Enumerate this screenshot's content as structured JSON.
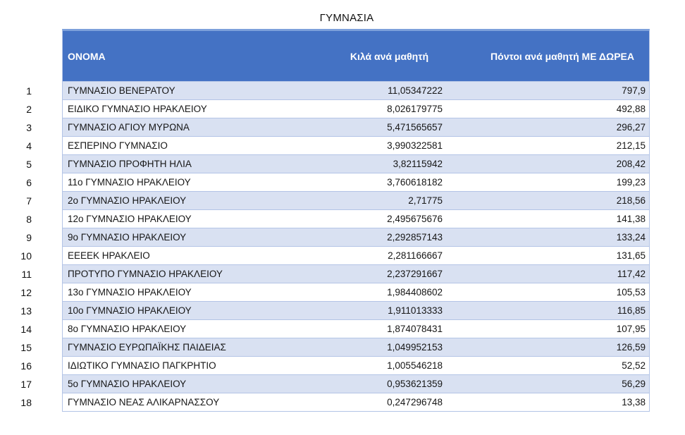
{
  "title": "ΓΥΜΝΑΣΙΑ",
  "colors": {
    "header_bg": "#4472C4",
    "header_top_edge": "#7DA0DB",
    "band_row_bg": "#D9E1F2",
    "plain_row_bg": "#FFFFFF",
    "border": "#B3C4E6",
    "header_text": "#FFFFFF",
    "body_text": "#161616"
  },
  "table": {
    "columns": [
      "ΟΝΟΜΑ",
      "Κιλά ανά μαθητή",
      "Πόντοι ανά μαθητή ΜΕ ΔΩΡΕΑ"
    ],
    "rows": [
      {
        "rank": "1",
        "name": "ΓΥΜΝΑΣΙΟ ΒΕΝΕΡΑΤΟΥ",
        "kilos": "11,05347222",
        "points": "797,9"
      },
      {
        "rank": "2",
        "name": "ΕΙΔΙΚΟ ΓΥΜΝΑΣΙΟ ΗΡΑΚΛΕΙΟΥ",
        "kilos": "8,026179775",
        "points": "492,88"
      },
      {
        "rank": "3",
        "name": "ΓΥΜΝΑΣΙΟ ΑΓΙΟΥ ΜΥΡΩΝΑ",
        "kilos": "5,471565657",
        "points": "296,27"
      },
      {
        "rank": "4",
        "name": "ΕΣΠΕΡΙΝΟ ΓΥΜΝΑΣΙΟ",
        "kilos": "3,990322581",
        "points": "212,15"
      },
      {
        "rank": "5",
        "name": "ΓΥΜΝΑΣΙΟ ΠΡΟΦΗΤΗ ΗΛΙΑ",
        "kilos": "3,82115942",
        "points": "208,42"
      },
      {
        "rank": "6",
        "name": "11ο ΓΥΜΝΑΣΙΟ ΗΡΑΚΛΕΙΟΥ",
        "kilos": "3,760618182",
        "points": "199,23"
      },
      {
        "rank": "7",
        "name": "2ο ΓΥΜΝΑΣΙΟ ΗΡΑΚΛΕΙΟΥ",
        "kilos": "2,71775",
        "points": "218,56"
      },
      {
        "rank": "8",
        "name": "12ο ΓΥΜΝΑΣΙΟ ΗΡΑΚΛΕΙΟΥ",
        "kilos": "2,495675676",
        "points": "141,38"
      },
      {
        "rank": "9",
        "name": "9ο ΓΥΜΝΑΣΙΟ ΗΡΑΚΛΕΙΟΥ",
        "kilos": "2,292857143",
        "points": "133,24"
      },
      {
        "rank": "10",
        "name": "ΕΕΕΕΚ ΗΡΑΚΛΕΙΟ",
        "kilos": "2,281166667",
        "points": "131,65"
      },
      {
        "rank": "11",
        "name": "ΠΡΟΤΥΠΟ ΓΥΜΝΑΣΙΟ ΗΡΑΚΛΕΙΟΥ",
        "kilos": "2,237291667",
        "points": "117,42"
      },
      {
        "rank": "12",
        "name": "13ο ΓΥΜΝΑΣΙΟ ΗΡΑΚΛΕΙΟΥ",
        "kilos": "1,984408602",
        "points": "105,53"
      },
      {
        "rank": "13",
        "name": "10ο ΓΥΜΝΑΣΙΟ ΗΡΑΚΛΕΙΟΥ",
        "kilos": "1,911013333",
        "points": "116,85"
      },
      {
        "rank": "14",
        "name": "8ο ΓΥΜΝΑΣΙΟ ΗΡΑΚΛΕΙΟΥ",
        "kilos": "1,874078431",
        "points": "107,95"
      },
      {
        "rank": "15",
        "name": "ΓΥΜΝΑΣΙΟ ΕΥΡΩΠΑΪΚΗΣ ΠΑΙΔΕΙΑΣ",
        "kilos": "1,049952153",
        "points": "126,59"
      },
      {
        "rank": "16",
        "name": "ΙΔΙΩΤΙΚΟ ΓΥΜΝΑΣΙΟ ΠΑΓΚΡΗΤΙΟ",
        "kilos": "1,005546218",
        "points": "52,52"
      },
      {
        "rank": "17",
        "name": "5ο ΓΥΜΝΑΣΙΟ ΗΡΑΚΛΕΙΟΥ",
        "kilos": "0,953621359",
        "points": "56,29"
      },
      {
        "rank": "18",
        "name": "ΓΥΜΝΑΣΙΟ ΝΕΑΣ ΑΛΙΚΑΡΝΑΣΣΟΥ",
        "kilos": "0,247296748",
        "points": "13,38"
      }
    ]
  }
}
